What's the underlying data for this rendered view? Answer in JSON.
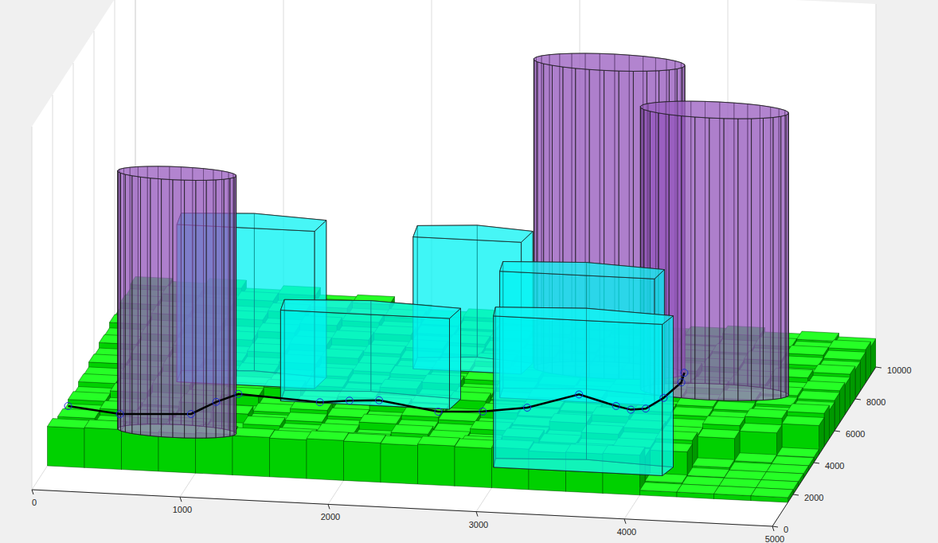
{
  "chart_data": {
    "type": "3d",
    "xlim": [
      0,
      5000
    ],
    "ylim": [
      0,
      10000
    ],
    "zlim": [
      0,
      600
    ],
    "xticks": [
      0,
      1000,
      2000,
      3000,
      4000,
      5000
    ],
    "yticks": [
      0,
      2000,
      4000,
      6000,
      8000,
      10000
    ],
    "grid": true,
    "terrain": {
      "color": "#00ff00",
      "x_edges": [
        0,
        250,
        500,
        750,
        1000,
        1250,
        1500,
        1750,
        2000,
        2250,
        2500,
        2750,
        3000,
        3250,
        3500,
        3750,
        4000,
        4250,
        4500,
        4750,
        5000
      ],
      "y_edges": [
        1500,
        2000,
        2500,
        3000,
        3500,
        4000,
        4500,
        5000,
        5500,
        6000,
        6500,
        7000,
        7500,
        8000,
        8500,
        9000,
        9500,
        10000
      ],
      "heights": [
        [
          65,
          66,
          64,
          65,
          67,
          65,
          64,
          66,
          65,
          64,
          66,
          65,
          67,
          64,
          65,
          66,
          8,
          8,
          8,
          8
        ],
        [
          48,
          52,
          45,
          58,
          50,
          44,
          55,
          47,
          53,
          49,
          46,
          57,
          51,
          45,
          54,
          50,
          10,
          8,
          8,
          8
        ],
        [
          55,
          47,
          60,
          50,
          46,
          58,
          49,
          52,
          45,
          56,
          50,
          47,
          59,
          53,
          48,
          52,
          48,
          9,
          8,
          8
        ],
        [
          50,
          58,
          52,
          47,
          61,
          49,
          54,
          46,
          57,
          51,
          48,
          55,
          50,
          46,
          58,
          49,
          54,
          12,
          8,
          8
        ],
        [
          57,
          50,
          55,
          62,
          48,
          53,
          60,
          51,
          49,
          58,
          54,
          47,
          52,
          60,
          50,
          56,
          49,
          47,
          10,
          8
        ],
        [
          52,
          61,
          49,
          56,
          64,
          50,
          55,
          48,
          59,
          52,
          47,
          58,
          54,
          49,
          61,
          53,
          48,
          55,
          46,
          9
        ],
        [
          60,
          55,
          63,
          52,
          58,
          66,
          51,
          57,
          50,
          54,
          61,
          49,
          56,
          52,
          47,
          58,
          54,
          50,
          57,
          48
        ],
        [
          58,
          64,
          57,
          66,
          55,
          61,
          59,
          53,
          62,
          49,
          56,
          51,
          58,
          63,
          52,
          49,
          57,
          53,
          48,
          55
        ],
        [
          66,
          60,
          68,
          59,
          64,
          57,
          63,
          55,
          52,
          60,
          48,
          57,
          50,
          54,
          59,
          56,
          50,
          58,
          52,
          47
        ],
        [
          63,
          70,
          62,
          67,
          61,
          68,
          56,
          60,
          58,
          51,
          55,
          62,
          53,
          49,
          57,
          52,
          60,
          49,
          55,
          50
        ],
        [
          72,
          66,
          74,
          64,
          70,
          62,
          67,
          59,
          54,
          57,
          50,
          53,
          58,
          61,
          48,
          55,
          51,
          57,
          50,
          53
        ],
        [
          70,
          77,
          68,
          75,
          66,
          72,
          60,
          64,
          57,
          52,
          59,
          49,
          55,
          50,
          56,
          60,
          47,
          52,
          58,
          49
        ],
        [
          79,
          73,
          81,
          70,
          77,
          68,
          71,
          58,
          62,
          55,
          50,
          57,
          52,
          48,
          53,
          49,
          55,
          50,
          46,
          54
        ],
        [
          76,
          84,
          75,
          82,
          72,
          79,
          65,
          69,
          56,
          60,
          53,
          48,
          56,
          51,
          47,
          54,
          50,
          57,
          52,
          48
        ],
        [
          85,
          78,
          88,
          76,
          84,
          71,
          74,
          63,
          59,
          54,
          58,
          50,
          47,
          55,
          52,
          48,
          53,
          49,
          56,
          51
        ],
        [
          82,
          90,
          80,
          87,
          75,
          81,
          68,
          70,
          61,
          57,
          52,
          56,
          51,
          46,
          58,
          50,
          47,
          54,
          50,
          55
        ],
        [
          89,
          84,
          92,
          79,
          86,
          74,
          77,
          66,
          58,
          63,
          55,
          49,
          53,
          57,
          48,
          52,
          56,
          49,
          53,
          47
        ]
      ]
    },
    "cylinders": [
      {
        "color": "#9b59c6",
        "x": 700,
        "y": 4000,
        "radius": 400,
        "height": 426
      },
      {
        "color": "#9b59c6",
        "x": 3270,
        "y": 9000,
        "radius": 510,
        "height": 509
      },
      {
        "color": "#9b59c6",
        "x": 4050,
        "y": 8000,
        "radius": 500,
        "height": 466
      }
    ],
    "prisms": [
      {
        "color": "#00ffff",
        "vertices": [
          [
            2925,
            2750
          ],
          [
            4065,
            2750
          ],
          [
            4100,
            3300
          ],
          [
            3500,
            3500
          ],
          [
            2900,
            3300
          ]
        ],
        "height": 250
      },
      {
        "color": "#00ffff",
        "vertices": [
          [
            1250,
            6150
          ],
          [
            2390,
            6150
          ],
          [
            2420,
            6800
          ],
          [
            1800,
            7000
          ],
          [
            1230,
            6800
          ]
        ],
        "height": 150
      },
      {
        "color": "#00ffff",
        "vertices": [
          [
            490,
            7000
          ],
          [
            1420,
            7000
          ],
          [
            1450,
            7700
          ],
          [
            950,
            7900
          ],
          [
            470,
            7700
          ]
        ],
        "height": 260
      },
      {
        "color": "#00ffff",
        "vertices": [
          [
            1980,
            8500
          ],
          [
            2710,
            8500
          ],
          [
            2740,
            9200
          ],
          [
            2350,
            9400
          ],
          [
            1960,
            9200
          ]
        ],
        "height": 218
      },
      {
        "color": "#00ffff",
        "vertices": [
          [
            2670,
            7000
          ],
          [
            3715,
            7000
          ],
          [
            3740,
            7600
          ],
          [
            3200,
            7800
          ],
          [
            2650,
            7600
          ]
        ],
        "height": 209
      }
    ],
    "path": {
      "color": "#000000",
      "marker": "circle",
      "line_style": "solid",
      "x": [
        0,
        350,
        830,
        1000,
        1150,
        1700,
        1900,
        2100,
        2500,
        2800,
        3100,
        3450,
        3700,
        3800,
        3900,
        4000,
        4050,
        4000
      ],
      "y": [
        3500,
        3500,
        3500,
        3500,
        3500,
        3500,
        3500,
        3500,
        3500,
        3500,
        3500,
        3500,
        3500,
        3500,
        3500,
        3800,
        4800,
        5800
      ],
      "z": [
        46,
        37,
        43,
        65,
        80,
        73,
        78,
        81,
        67,
        71,
        81,
        107,
        91,
        86,
        89,
        100,
        100,
        89
      ]
    }
  }
}
